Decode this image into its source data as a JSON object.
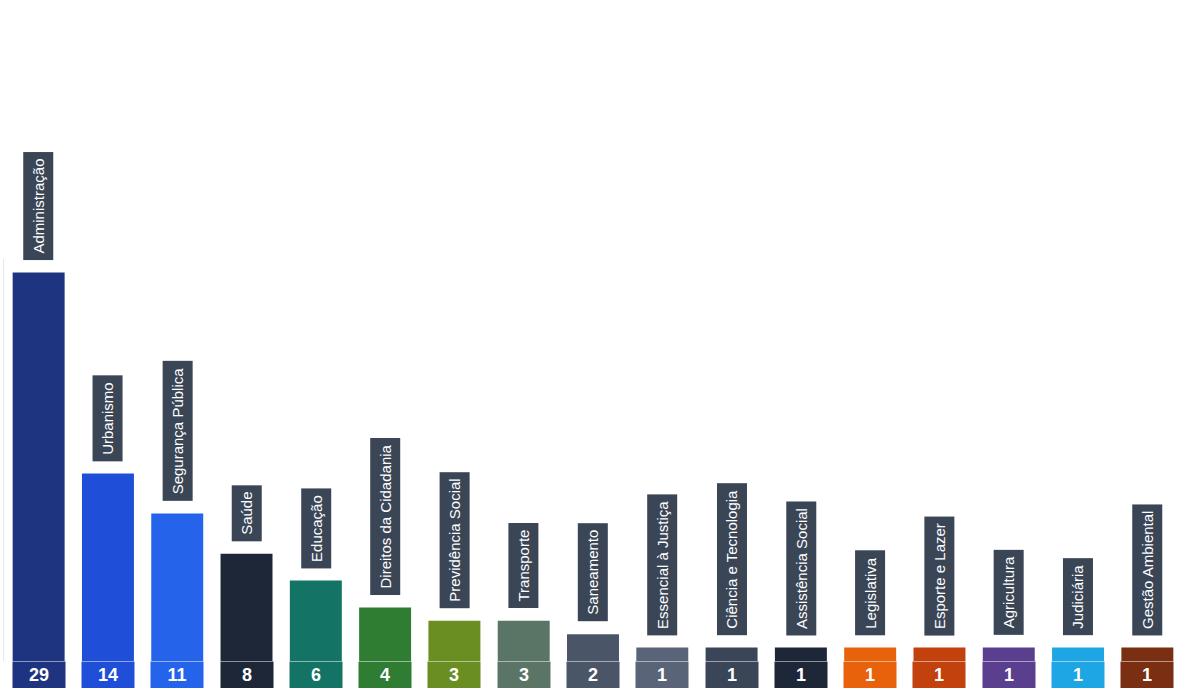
{
  "chart_data": {
    "type": "bar",
    "categories": [
      "Administração",
      "Urbanismo",
      "Segurança Pública",
      "Saúde",
      "Educação",
      "Direitos da Cidadania",
      "Previdência Social",
      "Transporte",
      "Saneamento",
      "Essencial à Justiça",
      "Ciência e Tecnologia",
      "Assistência Social",
      "Legislativa",
      "Esporte e Lazer",
      "Agricultura",
      "Judiciária",
      "Gestão Ambiental"
    ],
    "values": [
      29,
      14,
      11,
      8,
      6,
      4,
      3,
      3,
      2,
      1,
      1,
      1,
      1,
      1,
      1,
      1,
      1
    ],
    "colors": [
      "#1f3480",
      "#1f4fd8",
      "#2563eb",
      "#1e2738",
      "#137365",
      "#2e7d32",
      "#6b8e23",
      "#5a7566",
      "#4a5668",
      "#5a6478",
      "#3a4558",
      "#1e2738",
      "#e8620c",
      "#c2410c",
      "#5b3f8f",
      "#1ea5e3",
      "#7a2e12"
    ],
    "ylim": [
      0,
      30
    ],
    "grid": false,
    "data_labels": true,
    "tick_labels": false
  }
}
